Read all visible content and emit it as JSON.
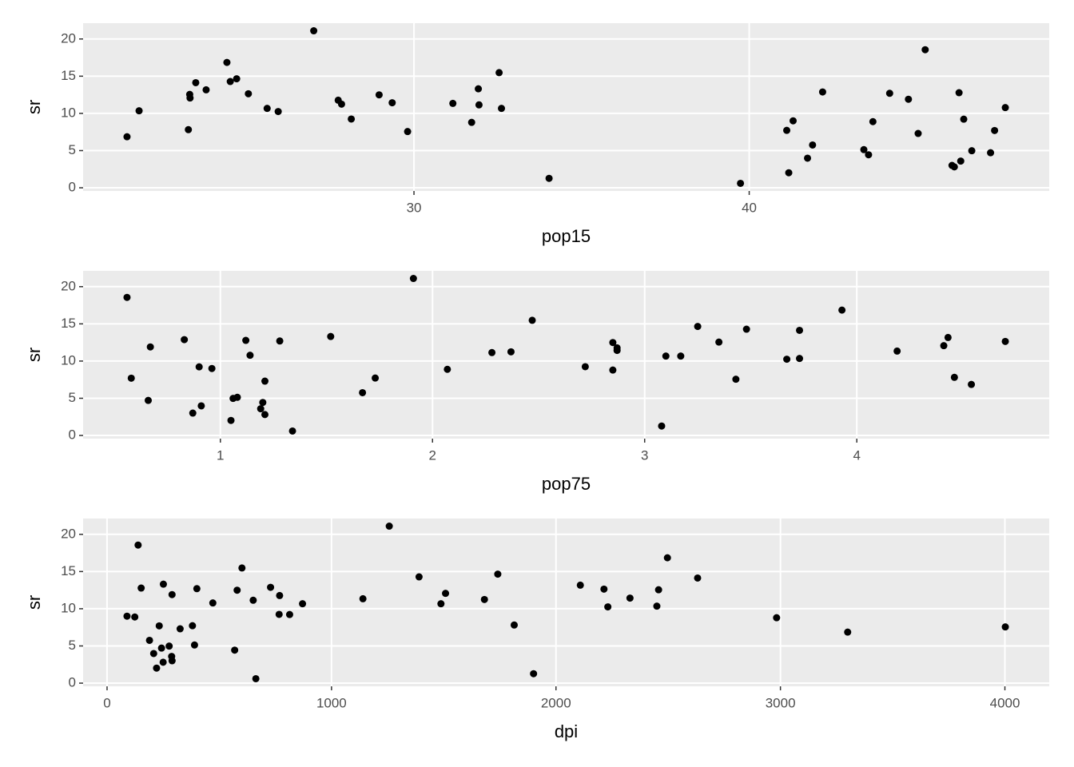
{
  "chart_data": [
    {
      "type": "scatter",
      "xlabel": "pop15",
      "ylabel": "sr",
      "x": [
        29.35,
        23.32,
        23.8,
        41.89,
        42.19,
        31.72,
        39.74,
        44.75,
        46.64,
        47.64,
        24.42,
        46.31,
        27.84,
        25.06,
        23.31,
        25.62,
        46.05,
        47.32,
        34.03,
        41.31,
        31.16,
        24.52,
        27.01,
        41.74,
        21.8,
        32.54,
        25.95,
        24.71,
        32.61,
        45.04,
        43.56,
        41.18,
        44.19,
        46.26,
        28.96,
        31.94,
        31.92,
        27.74,
        21.44,
        23.49,
        43.42,
        46.12,
        23.27,
        29.81,
        46.4,
        45.25,
        41.12,
        28.13,
        43.69,
        47.2
      ],
      "values": [
        11.43,
        12.07,
        13.17,
        5.75,
        12.88,
        8.79,
        0.6,
        11.9,
        4.98,
        10.78,
        16.85,
        3.59,
        11.24,
        12.64,
        12.55,
        10.67,
        3.01,
        7.7,
        1.27,
        9.0,
        11.34,
        14.28,
        21.1,
        3.98,
        10.35,
        15.48,
        10.25,
        14.65,
        10.67,
        7.3,
        4.44,
        2.02,
        12.7,
        12.78,
        12.49,
        11.14,
        13.3,
        11.77,
        6.86,
        14.13,
        5.13,
        2.81,
        7.81,
        7.56,
        9.22,
        18.56,
        7.72,
        9.24,
        8.89,
        4.71
      ],
      "xlim": [
        20.13,
        48.95
      ],
      "ylim": [
        -0.425,
        22.125
      ],
      "xticks": [
        30,
        40
      ],
      "yticks": [
        0,
        5,
        10,
        15,
        20
      ],
      "grid": true,
      "color": "#000000"
    },
    {
      "type": "scatter",
      "xlabel": "pop75",
      "ylabel": "sr",
      "x": [
        2.87,
        4.41,
        4.43,
        1.67,
        0.83,
        2.85,
        1.34,
        0.67,
        1.06,
        1.14,
        3.93,
        1.19,
        2.37,
        4.7,
        3.35,
        3.1,
        0.87,
        0.58,
        3.08,
        0.96,
        4.19,
        3.48,
        1.91,
        0.91,
        3.73,
        2.47,
        3.67,
        3.25,
        3.17,
        1.21,
        1.2,
        1.05,
        1.28,
        1.12,
        2.85,
        2.28,
        1.52,
        2.87,
        4.54,
        3.73,
        1.08,
        1.21,
        4.46,
        3.43,
        0.9,
        0.56,
        1.73,
        2.72,
        2.07,
        0.66
      ],
      "values": [
        11.43,
        12.07,
        13.17,
        5.75,
        12.88,
        8.79,
        0.6,
        11.9,
        4.98,
        10.78,
        16.85,
        3.59,
        11.24,
        12.64,
        12.55,
        10.67,
        3.01,
        7.7,
        1.27,
        9.0,
        11.34,
        14.28,
        21.1,
        3.98,
        10.35,
        15.48,
        10.25,
        14.65,
        10.67,
        7.3,
        4.44,
        2.02,
        12.7,
        12.78,
        12.49,
        11.14,
        13.3,
        11.77,
        6.86,
        14.13,
        5.13,
        2.81,
        7.81,
        7.56,
        9.22,
        18.56,
        7.72,
        9.24,
        8.89,
        4.71
      ],
      "xlim": [
        0.353,
        4.907
      ],
      "ylim": [
        -0.425,
        22.125
      ],
      "xticks": [
        1,
        2,
        3,
        4
      ],
      "yticks": [
        0,
        5,
        10,
        15,
        20
      ],
      "grid": true,
      "color": "#000000"
    },
    {
      "type": "scatter",
      "xlabel": "dpi",
      "ylabel": "sr",
      "x": [
        2329.68,
        1507.99,
        2108.47,
        189.13,
        728.47,
        2982.88,
        662.86,
        289.52,
        276.65,
        471.24,
        2496.53,
        287.77,
        1681.25,
        2213.82,
        2457.12,
        870.85,
        289.71,
        232.44,
        1900.1,
        88.94,
        1139.95,
        1390.0,
        1257.28,
        207.68,
        2449.39,
        601.05,
        2231.03,
        1740.7,
        1487.52,
        325.54,
        568.56,
        220.56,
        400.06,
        152.01,
        579.51,
        651.11,
        250.96,
        768.79,
        3299.49,
        2630.96,
        389.66,
        249.87,
        1813.93,
        4001.89,
        813.39,
        138.33,
        380.47,
        766.54,
        123.58,
        242.69
      ],
      "values": [
        11.43,
        12.07,
        13.17,
        5.75,
        12.88,
        8.79,
        0.6,
        11.9,
        4.98,
        10.78,
        16.85,
        3.59,
        11.24,
        12.64,
        12.55,
        10.67,
        3.01,
        7.7,
        1.27,
        9.0,
        11.34,
        14.28,
        21.1,
        3.98,
        10.35,
        15.48,
        10.25,
        14.65,
        10.67,
        7.3,
        4.44,
        2.02,
        12.7,
        12.78,
        12.49,
        11.14,
        13.3,
        11.77,
        6.86,
        14.13,
        5.13,
        2.81,
        7.81,
        7.56,
        9.22,
        18.56,
        7.72,
        9.24,
        8.89,
        4.71
      ],
      "xlim": [
        -106.7,
        4197.5
      ],
      "ylim": [
        -0.425,
        22.125
      ],
      "xticks": [
        0,
        1000,
        2000,
        3000,
        4000
      ],
      "yticks": [
        0,
        5,
        10,
        15,
        20
      ],
      "grid": true,
      "color": "#000000"
    }
  ]
}
